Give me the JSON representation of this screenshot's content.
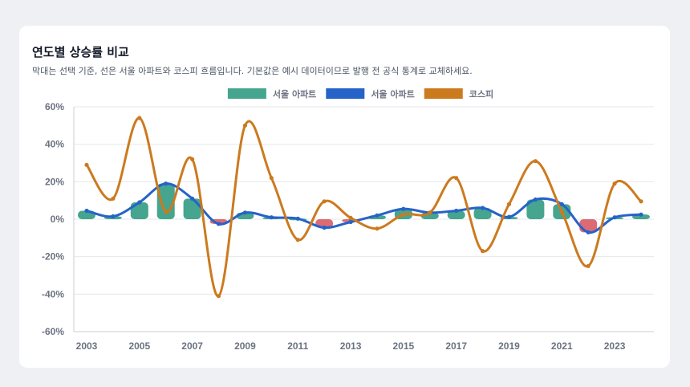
{
  "title": "연도별 상승률 비교",
  "subtitle": "막대는 선택 기준, 선은 서울 아파트와 코스피 흐름입니다. 기본값은 예시 데이터이므로 발행 전 공식 통계로 교체하세요.",
  "colors": {
    "bar_positive": "#45a58e",
    "bar_negative": "#dd6b73",
    "seoul_line": "#2563c9",
    "kospi_line": "#cc7a1e",
    "grid": "#e5e7eb",
    "axis": "#c7ccd4"
  },
  "chart_data": {
    "type": "bar",
    "x": [
      2003,
      2004,
      2005,
      2006,
      2007,
      2008,
      2009,
      2010,
      2011,
      2012,
      2013,
      2014,
      2015,
      2016,
      2017,
      2018,
      2019,
      2020,
      2021,
      2022,
      2023,
      2024
    ],
    "xticks": [
      "2003",
      "2005",
      "2007",
      "2009",
      "2011",
      "2013",
      "2015",
      "2017",
      "2019",
      "2021",
      "2023"
    ],
    "ylim": [
      -60,
      60
    ],
    "yticks": [
      60,
      40,
      20,
      0,
      -20,
      -40,
      -60
    ],
    "ytick_labels": [
      "60%",
      "40%",
      "20%",
      "0%",
      "-20%",
      "-40%",
      "-60%"
    ],
    "legend_placement": "top-center",
    "series": [
      {
        "name": "서울 아파트",
        "type": "bar",
        "color": "#45a58e",
        "values": [
          4.5,
          1.5,
          9,
          19,
          11,
          -2.5,
          3.5,
          1,
          0.3,
          -4.5,
          -1.5,
          2,
          5.5,
          3.5,
          4.5,
          6,
          1.2,
          10.5,
          8,
          -7,
          1,
          2.5
        ]
      },
      {
        "name": "서울 아파트",
        "type": "line",
        "color": "#2563c9",
        "values": [
          4.5,
          1.5,
          9,
          19,
          11,
          -2.5,
          3.5,
          1,
          0.3,
          -4.5,
          -1.5,
          2,
          5.5,
          3.5,
          4.5,
          6,
          1.2,
          10.5,
          8,
          -7,
          1,
          2.5
        ]
      },
      {
        "name": "코스피",
        "type": "line",
        "color": "#cc7a1e",
        "values": [
          29,
          11,
          54,
          4,
          32,
          -41,
          50,
          22,
          -11,
          9.5,
          0.7,
          -5,
          2.5,
          3.5,
          22,
          -17,
          8,
          31,
          4,
          -25,
          19,
          9.5
        ]
      }
    ]
  }
}
